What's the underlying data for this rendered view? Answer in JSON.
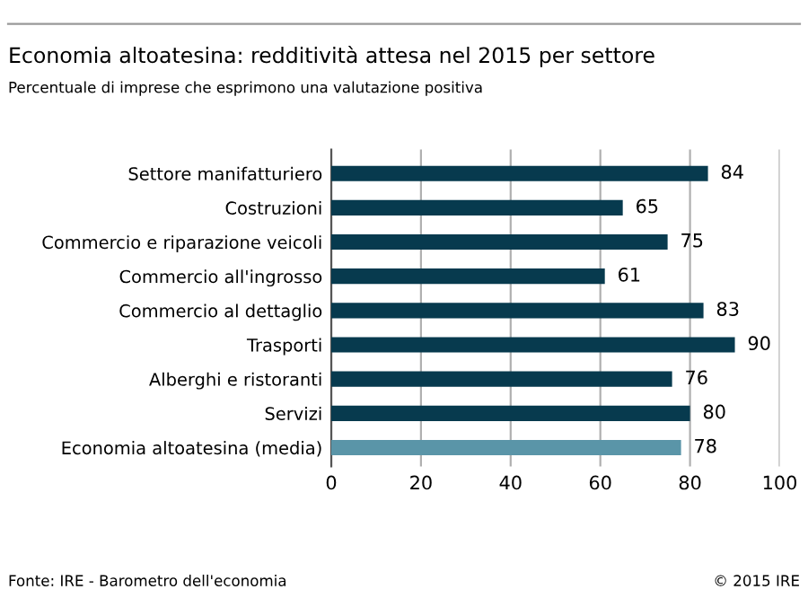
{
  "chart_data": {
    "type": "bar",
    "orientation": "horizontal",
    "title": "Economia altoatesina: redditività attesa nel 2015 per settore",
    "subtitle": "Percentuale di imprese che esprimono una valutazione positiva",
    "categories": [
      "Settore manifatturiero",
      "Costruzioni",
      "Commercio e riparazione veicoli",
      "Commercio all'ingrosso",
      "Commercio al dettaglio",
      "Trasporti",
      "Alberghi e ristoranti",
      "Servizi",
      "Economia altoatesina (media)"
    ],
    "values": [
      84,
      65,
      75,
      61,
      83,
      90,
      76,
      80,
      78
    ],
    "colors": [
      "#073a4e",
      "#073a4e",
      "#073a4e",
      "#073a4e",
      "#073a4e",
      "#073a4e",
      "#073a4e",
      "#073a4e",
      "#5a95a8"
    ],
    "xlim": [
      0,
      100
    ],
    "xticks": [
      0,
      20,
      40,
      60,
      80,
      100
    ],
    "grid": "x",
    "data_labels": true,
    "annotations": [
      "Fonte: IRE - Barometro dell'economia",
      "© 2015 IRE"
    ]
  }
}
